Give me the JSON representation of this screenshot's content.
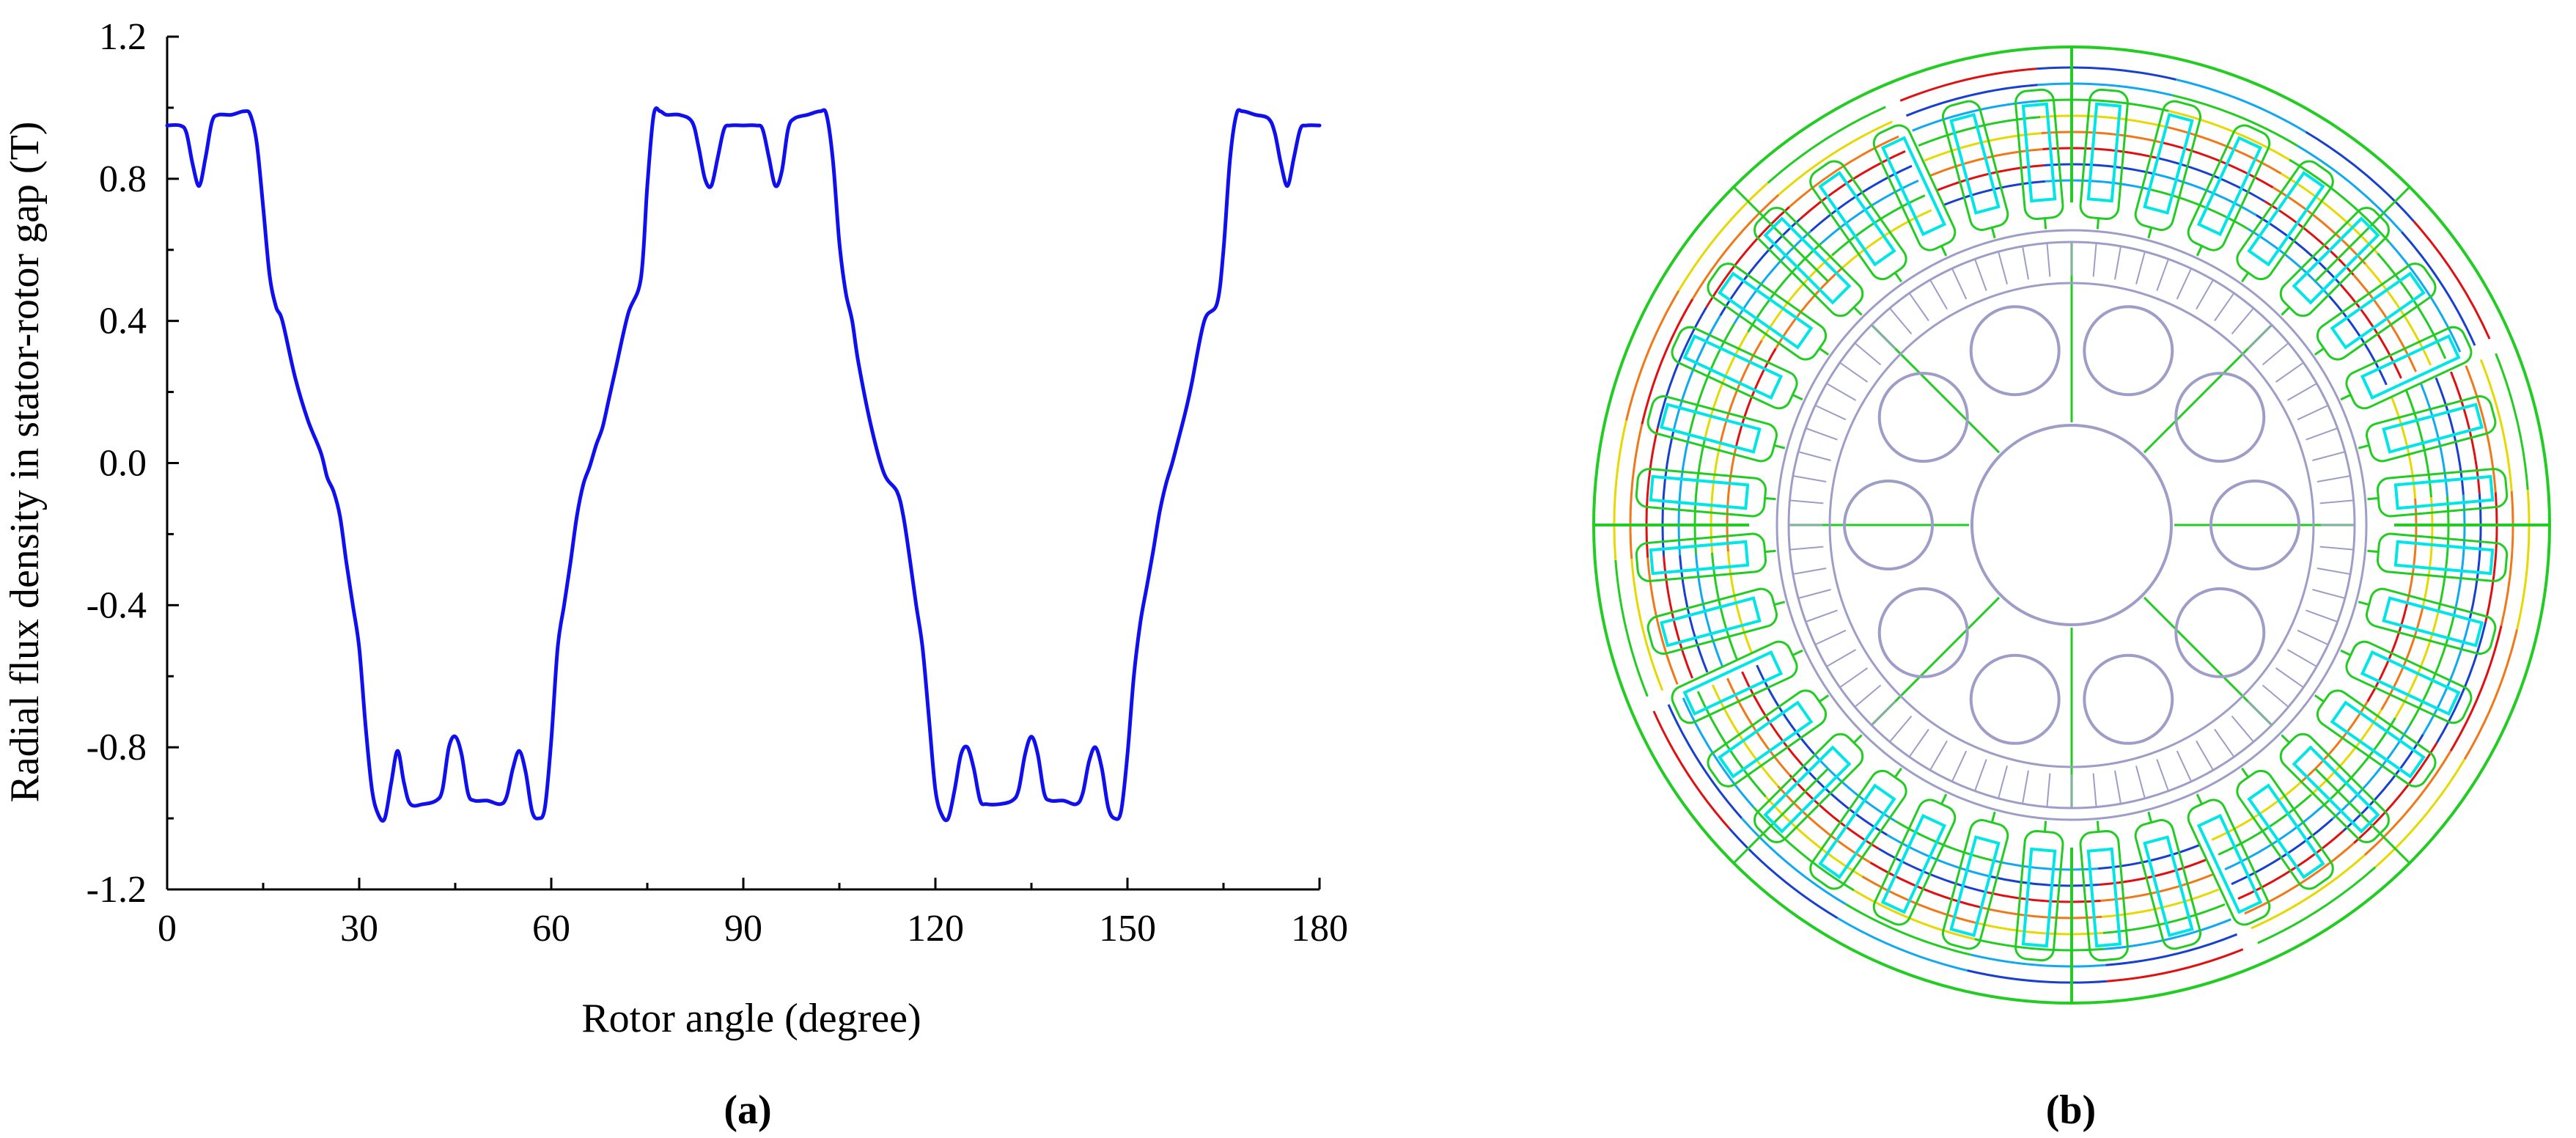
{
  "panels": {
    "a_label": "(a)",
    "b_label": "(b)"
  },
  "chart_data": {
    "type": "line",
    "title": "",
    "xlabel": "Rotor angle (degree)",
    "ylabel": "Radial flux density in stator-rotor gap (T)",
    "xlim": [
      0,
      180
    ],
    "ylim": [
      -1.2,
      1.2
    ],
    "xticks": [
      "0",
      "30",
      "60",
      "90",
      "120",
      "150",
      "180"
    ],
    "yticks": [
      "1.2",
      "0.8",
      "0.4",
      "0.0",
      "-0.4",
      "-0.8",
      "-1.2"
    ],
    "grid": false,
    "series_color": "#1010ee",
    "series": [
      {
        "x": [
          0,
          2,
          3,
          4,
          5,
          6,
          7,
          8,
          10,
          12,
          13,
          14,
          15,
          16,
          17,
          18,
          20,
          22,
          24,
          25,
          26,
          27,
          28,
          29,
          30,
          31,
          32,
          33,
          34,
          35,
          36,
          37,
          38,
          40,
          42,
          43,
          44,
          45,
          46,
          47,
          48,
          50,
          52,
          53,
          54,
          55,
          56,
          57,
          58,
          59,
          60,
          61,
          62,
          63,
          64,
          65,
          66,
          67,
          68,
          69,
          70,
          72,
          74,
          75,
          76,
          77,
          78,
          80,
          82,
          83,
          84,
          85,
          86,
          87,
          88,
          90,
          92,
          93,
          94,
          95,
          96,
          97,
          98,
          100,
          102,
          103,
          104,
          105,
          106,
          107,
          108,
          110,
          112,
          114,
          115,
          116,
          117,
          118,
          119,
          120,
          121,
          122,
          123,
          124,
          125,
          126,
          127,
          128,
          130,
          132,
          133,
          134,
          135,
          136,
          137,
          138,
          140,
          142,
          143,
          144,
          145,
          146,
          147,
          148,
          149,
          150,
          151,
          152,
          153,
          154,
          155,
          156,
          157,
          158,
          159,
          160,
          162,
          164,
          165,
          166,
          167,
          168,
          170,
          172,
          173,
          174,
          175,
          176,
          177,
          178,
          180
        ],
        "y": [
          0.95,
          0.95,
          0.93,
          0.84,
          0.78,
          0.86,
          0.96,
          0.98,
          0.98,
          0.99,
          0.98,
          0.9,
          0.72,
          0.53,
          0.44,
          0.4,
          0.24,
          0.12,
          0.03,
          -0.04,
          -0.08,
          -0.15,
          -0.28,
          -0.4,
          -0.52,
          -0.74,
          -0.92,
          -0.99,
          -1.0,
          -0.9,
          -0.81,
          -0.9,
          -0.96,
          -0.96,
          -0.95,
          -0.92,
          -0.8,
          -0.77,
          -0.82,
          -0.93,
          -0.95,
          -0.95,
          -0.96,
          -0.94,
          -0.86,
          -0.81,
          -0.87,
          -0.98,
          -1.0,
          -0.97,
          -0.78,
          -0.52,
          -0.4,
          -0.28,
          -0.15,
          -0.06,
          -0.01,
          0.05,
          0.1,
          0.18,
          0.26,
          0.42,
          0.52,
          0.78,
          0.98,
          0.99,
          0.98,
          0.98,
          0.96,
          0.89,
          0.8,
          0.78,
          0.86,
          0.94,
          0.95,
          0.95,
          0.95,
          0.94,
          0.86,
          0.78,
          0.82,
          0.94,
          0.97,
          0.98,
          0.99,
          0.98,
          0.85,
          0.62,
          0.48,
          0.4,
          0.28,
          0.1,
          -0.03,
          -0.08,
          -0.15,
          -0.27,
          -0.4,
          -0.52,
          -0.72,
          -0.92,
          -0.99,
          -1.0,
          -0.92,
          -0.82,
          -0.8,
          -0.86,
          -0.95,
          -0.96,
          -0.96,
          -0.95,
          -0.92,
          -0.82,
          -0.77,
          -0.82,
          -0.93,
          -0.95,
          -0.95,
          -0.96,
          -0.93,
          -0.84,
          -0.8,
          -0.86,
          -0.97,
          -1.0,
          -0.98,
          -0.82,
          -0.6,
          -0.45,
          -0.35,
          -0.25,
          -0.14,
          -0.06,
          0.0,
          0.07,
          0.14,
          0.22,
          0.4,
          0.45,
          0.6,
          0.85,
          0.98,
          0.99,
          0.98,
          0.97,
          0.93,
          0.84,
          0.78,
          0.86,
          0.94,
          0.95,
          0.95
        ]
      }
    ]
  },
  "motor_colors": {
    "outline": "#22cc22",
    "coil": "#00e5e5",
    "lamination": "#9d9dc8",
    "red": "#e01010",
    "orange": "#f07818",
    "yellow": "#e6d800",
    "blue": "#1840d0",
    "lightblue": "#10a8f0"
  }
}
